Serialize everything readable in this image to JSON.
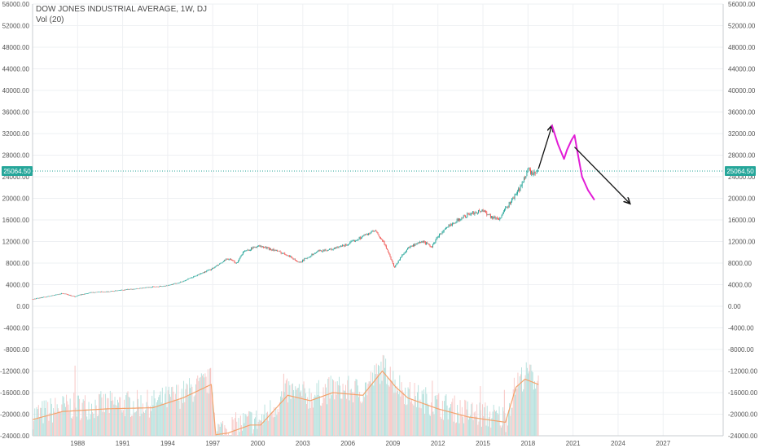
{
  "legend": {
    "title": "DOW JONES INDUSTRIAL AVERAGE, 1W, DJ",
    "volume_label": "Vol (20)"
  },
  "colors": {
    "up": "#26a69a",
    "down": "#ef5350",
    "volume_up": "#b2dfdb",
    "volume_down": "#f7c6c4",
    "volume_ma": "#f4a26b",
    "last_price": "#26a69a",
    "drawing_arrow": "#111111",
    "drawing_brush": "#e21cd6",
    "grid": "#eef0f3",
    "axis_text": "#555555"
  },
  "chart_data": {
    "type": "line",
    "title": "DOW JONES INDUSTRIAL AVERAGE, 1W, DJ",
    "xlabel": "",
    "ylabel": "",
    "xlim": [
      1985.0,
      2031.0
    ],
    "ylim": [
      -24000,
      56000
    ],
    "x_ticks": [
      "1988",
      "1991",
      "1994",
      "1997",
      "2000",
      "2003",
      "2006",
      "2009",
      "2012",
      "2015",
      "2018",
      "2021",
      "2024",
      "2027"
    ],
    "y_ticks": [
      "56000.00",
      "52000.00",
      "48000.00",
      "44000.00",
      "40000.00",
      "36000.00",
      "32000.00",
      "28000.00",
      "24000.00",
      "20000.00",
      "16000.00",
      "12000.00",
      "8000.00",
      "4000.00",
      "0.00",
      "-4000.00",
      "-8000.00",
      "-12000.00",
      "-16000.00",
      "-20000.00",
      "-24000.00"
    ],
    "last_price_label": "25064.50",
    "last_price": 25064.5,
    "grid": true,
    "series": [
      {
        "kind": "price",
        "x": [
          1985.0,
          1986.0,
          1987.0,
          1987.8,
          1988.0,
          1989.0,
          1990.0,
          1991.0,
          1992.0,
          1993.0,
          1994.0,
          1995.0,
          1996.0,
          1997.0,
          1998.0,
          1998.6,
          1999.0,
          2000.0,
          2001.0,
          2002.0,
          2002.8,
          2003.0,
          2004.0,
          2005.0,
          2006.0,
          2007.0,
          2007.8,
          2008.5,
          2009.1,
          2009.5,
          2010.0,
          2011.0,
          2011.6,
          2012.0,
          2013.0,
          2014.0,
          2015.0,
          2015.6,
          2016.1,
          2016.5,
          2017.0,
          2017.5,
          2018.0,
          2018.3,
          2018.7
        ],
        "y": [
          1300,
          1800,
          2400,
          1800,
          2000,
          2600,
          2700,
          3000,
          3300,
          3600,
          3800,
          4600,
          5800,
          7000,
          8800,
          8000,
          10000,
          11200,
          10500,
          9500,
          8000,
          8500,
          10200,
          10600,
          11500,
          13000,
          14000,
          11300,
          7200,
          9000,
          10800,
          12000,
          11000,
          13000,
          15500,
          17000,
          17800,
          16500,
          16200,
          18000,
          20000,
          22000,
          25500,
          24300,
          25064
        ]
      },
      {
        "kind": "volume_ma",
        "x": [
          1985.0,
          1987.0,
          1990.0,
          1993.0,
          1995.0,
          1996.9,
          1997.2,
          1998.0,
          1999.5,
          2000.2,
          2002.0,
          2003.5,
          2005.0,
          2007.0,
          2008.3,
          2009.2,
          2010.0,
          2012.0,
          2014.0,
          2016.5,
          2017.2,
          2017.8,
          2018.7
        ],
        "y": [
          -21000,
          -19500,
          -19000,
          -18800,
          -17000,
          -14500,
          -23800,
          -23500,
          -22000,
          -22000,
          -16500,
          -17500,
          -16000,
          -16500,
          -12000,
          -15000,
          -17000,
          -19000,
          -20500,
          -21500,
          -15000,
          -13500,
          -14500
        ]
      },
      {
        "kind": "volume_spikes",
        "x": [
          1987.8,
          1996.8,
          2001.7,
          2008.8,
          2011.6,
          2014.8,
          2016.4,
          2018.1
        ],
        "y": [
          -11000,
          -11500,
          -12500,
          -11200,
          -13800,
          -14800,
          -15500,
          -10800
        ]
      }
    ],
    "annotations": [
      {
        "kind": "arrow",
        "x": [
          2018.7,
          2019.6
        ],
        "y": [
          25500,
          33500
        ]
      },
      {
        "kind": "brush",
        "x": [
          2019.6,
          2020.0,
          2020.4,
          2020.6,
          2020.9,
          2021.1,
          2021.3,
          2021.6,
          2022.0,
          2022.4
        ],
        "y": [
          33500,
          30000,
          27300,
          29000,
          30800,
          31700,
          28500,
          24000,
          21500,
          19800
        ]
      },
      {
        "kind": "arrow",
        "x": [
          2021.1,
          2024.8
        ],
        "y": [
          29500,
          19000
        ]
      }
    ]
  }
}
